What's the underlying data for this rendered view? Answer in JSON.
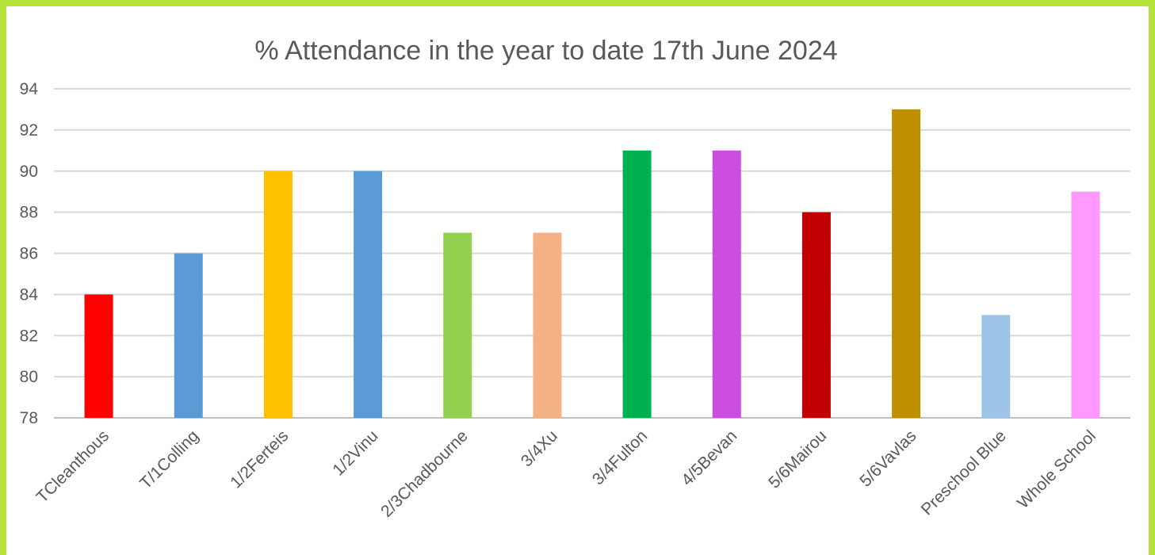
{
  "chart_data": {
    "type": "bar",
    "title": "% Attendance in the year to date 17th June 2024",
    "xlabel": "",
    "ylabel": "",
    "ylim": [
      78,
      94
    ],
    "yticks": [
      78,
      80,
      82,
      84,
      86,
      88,
      90,
      92,
      94
    ],
    "grid": true,
    "legend": "none",
    "categories": [
      "TCleanthous",
      "T/1Colling",
      "1/2Ferteis",
      "1/2Vinu",
      "2/3Chadbourne",
      "3/4Xu",
      "3/4Fulton",
      "4/5Bevan",
      "5/6Mairou",
      "5/6Vavlas",
      "Preschool Blue",
      "Whole School"
    ],
    "values": [
      84,
      86,
      90,
      90,
      87,
      87,
      91,
      91,
      88,
      93,
      83,
      89
    ],
    "colors": [
      "#ff0000",
      "#5b9bd5",
      "#ffc000",
      "#5b9bd5",
      "#92d050",
      "#f4b183",
      "#00b050",
      "#cc4ee0",
      "#c00000",
      "#bf8f00",
      "#9dc3e6",
      "#ff99ff"
    ]
  }
}
